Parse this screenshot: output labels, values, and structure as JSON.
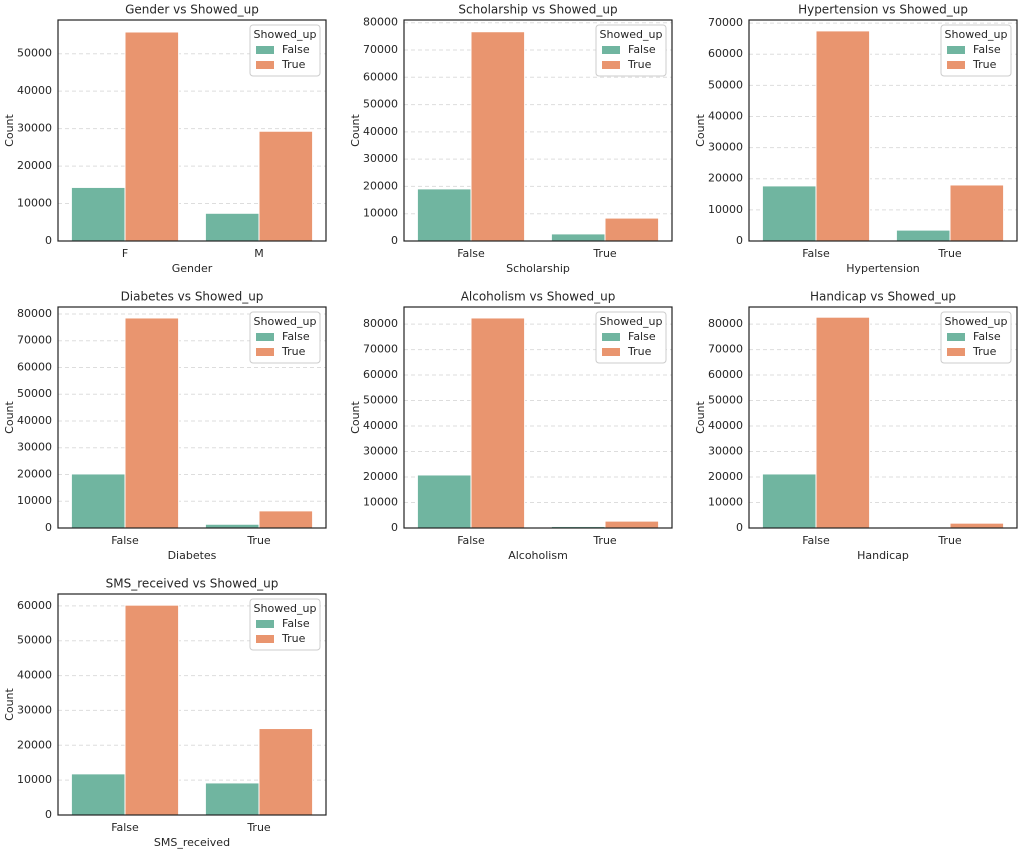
{
  "chart_data": [
    {
      "type": "bar",
      "title": "Gender vs Showed_up",
      "x_label": "Gender",
      "y_label": "Count",
      "categories": [
        "F",
        "M"
      ],
      "series": [
        {
          "name": "False",
          "color": "#70b5a0",
          "values": [
            14300,
            7400
          ]
        },
        {
          "name": "True",
          "color": "#e9956f",
          "values": [
            55800,
            29300
          ]
        }
      ],
      "legend_title": "Showed_up",
      "legend": "upper right",
      "grid": true,
      "ylim": [
        0,
        59000
      ],
      "yticks": [
        0,
        10000,
        20000,
        30000,
        40000,
        50000
      ]
    },
    {
      "type": "bar",
      "title": "Scholarship vs Showed_up",
      "x_label": "Scholarship",
      "y_label": "Count",
      "categories": [
        "False",
        "True"
      ],
      "series": [
        {
          "name": "False",
          "color": "#70b5a0",
          "values": [
            19100,
            2600
          ]
        },
        {
          "name": "True",
          "color": "#e9956f",
          "values": [
            76700,
            8400
          ]
        }
      ],
      "legend_title": "Showed_up",
      "legend": "upper right",
      "grid": true,
      "ylim": [
        0,
        81000
      ],
      "yticks": [
        0,
        10000,
        20000,
        30000,
        40000,
        50000,
        60000,
        70000,
        80000
      ]
    },
    {
      "type": "bar",
      "title": "Hypertension vs Showed_up",
      "x_label": "Hypertension",
      "y_label": "Count",
      "categories": [
        "False",
        "True"
      ],
      "series": [
        {
          "name": "False",
          "color": "#70b5a0",
          "values": [
            17700,
            3500
          ]
        },
        {
          "name": "True",
          "color": "#e9956f",
          "values": [
            67500,
            18000
          ]
        }
      ],
      "legend_title": "Showed_up",
      "legend": "upper right",
      "grid": true,
      "ylim": [
        0,
        71000
      ],
      "yticks": [
        0,
        10000,
        20000,
        30000,
        40000,
        50000,
        60000,
        70000
      ]
    },
    {
      "type": "bar",
      "title": "Diabetes vs Showed_up",
      "x_label": "Diabetes",
      "y_label": "Count",
      "categories": [
        "False",
        "True"
      ],
      "series": [
        {
          "name": "False",
          "color": "#70b5a0",
          "values": [
            20200,
            1400
          ]
        },
        {
          "name": "True",
          "color": "#e9956f",
          "values": [
            78500,
            6400
          ]
        }
      ],
      "legend_title": "Showed_up",
      "legend": "upper right",
      "grid": true,
      "ylim": [
        0,
        82600
      ],
      "yticks": [
        0,
        10000,
        20000,
        30000,
        40000,
        50000,
        60000,
        70000,
        80000
      ]
    },
    {
      "type": "bar",
      "title": "Alcoholism vs Showed_up",
      "x_label": "Alcoholism",
      "y_label": "Count",
      "categories": [
        "False",
        "True"
      ],
      "series": [
        {
          "name": "False",
          "color": "#70b5a0",
          "values": [
            20800,
            600
          ]
        },
        {
          "name": "True",
          "color": "#e9956f",
          "values": [
            82400,
            2700
          ]
        }
      ],
      "legend_title": "Showed_up",
      "legend": "upper right",
      "grid": true,
      "ylim": [
        0,
        86700
      ],
      "yticks": [
        0,
        10000,
        20000,
        30000,
        40000,
        50000,
        60000,
        70000,
        80000
      ]
    },
    {
      "type": "bar",
      "title": "Handicap vs Showed_up",
      "x_label": "Handicap",
      "y_label": "Count",
      "categories": [
        "False",
        "True"
      ],
      "series": [
        {
          "name": "False",
          "color": "#70b5a0",
          "values": [
            21200,
            400
          ]
        },
        {
          "name": "True",
          "color": "#e9956f",
          "values": [
            82700,
            1900
          ]
        }
      ],
      "legend_title": "Showed_up",
      "legend": "upper right",
      "grid": true,
      "ylim": [
        0,
        86700
      ],
      "yticks": [
        0,
        10000,
        20000,
        30000,
        40000,
        50000,
        60000,
        70000,
        80000
      ]
    },
    {
      "type": "bar",
      "title": "SMS_received vs Showed_up",
      "x_label": "SMS_received",
      "y_label": "Count",
      "categories": [
        "False",
        "True"
      ],
      "series": [
        {
          "name": "False",
          "color": "#70b5a0",
          "values": [
            11800,
            9200
          ]
        },
        {
          "name": "True",
          "color": "#e9956f",
          "values": [
            60200,
            24800
          ]
        }
      ],
      "legend_title": "Showed_up",
      "legend": "upper right",
      "grid": true,
      "ylim": [
        0,
        63400
      ],
      "yticks": [
        0,
        10000,
        20000,
        30000,
        40000,
        50000,
        60000
      ]
    }
  ]
}
